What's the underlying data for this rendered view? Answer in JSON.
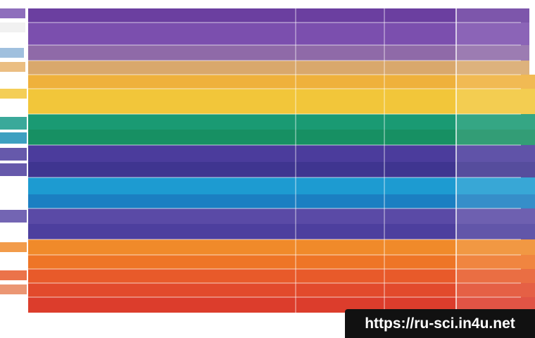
{
  "watermark": "https://ru-sci.in4u.net"
}
